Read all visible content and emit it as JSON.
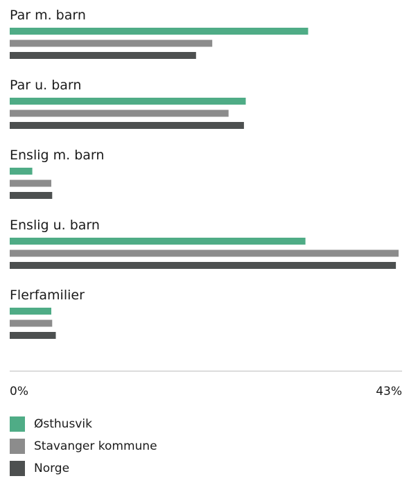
{
  "chart_data": {
    "type": "bar",
    "orientation": "horizontal",
    "categories": [
      "Par m. barn",
      "Par u. barn",
      "Enslig m. barn",
      "Enslig u. barn",
      "Flerfamilier"
    ],
    "series": [
      {
        "name": "Østhusvik",
        "color": "#4fac86",
        "values": [
          33.0,
          26.1,
          2.5,
          32.7,
          4.6
        ]
      },
      {
        "name": "Stavanger kommune",
        "color": "#8c8c8c",
        "values": [
          22.4,
          24.2,
          4.6,
          43.0,
          4.7
        ]
      },
      {
        "name": "Norge",
        "color": "#4d5050",
        "values": [
          20.6,
          25.9,
          4.7,
          42.7,
          5.1
        ]
      }
    ],
    "xlim": [
      0,
      43
    ],
    "x_tick_labels": [
      "0%",
      "43%"
    ],
    "legend_position": "bottom-left",
    "grid": false
  }
}
